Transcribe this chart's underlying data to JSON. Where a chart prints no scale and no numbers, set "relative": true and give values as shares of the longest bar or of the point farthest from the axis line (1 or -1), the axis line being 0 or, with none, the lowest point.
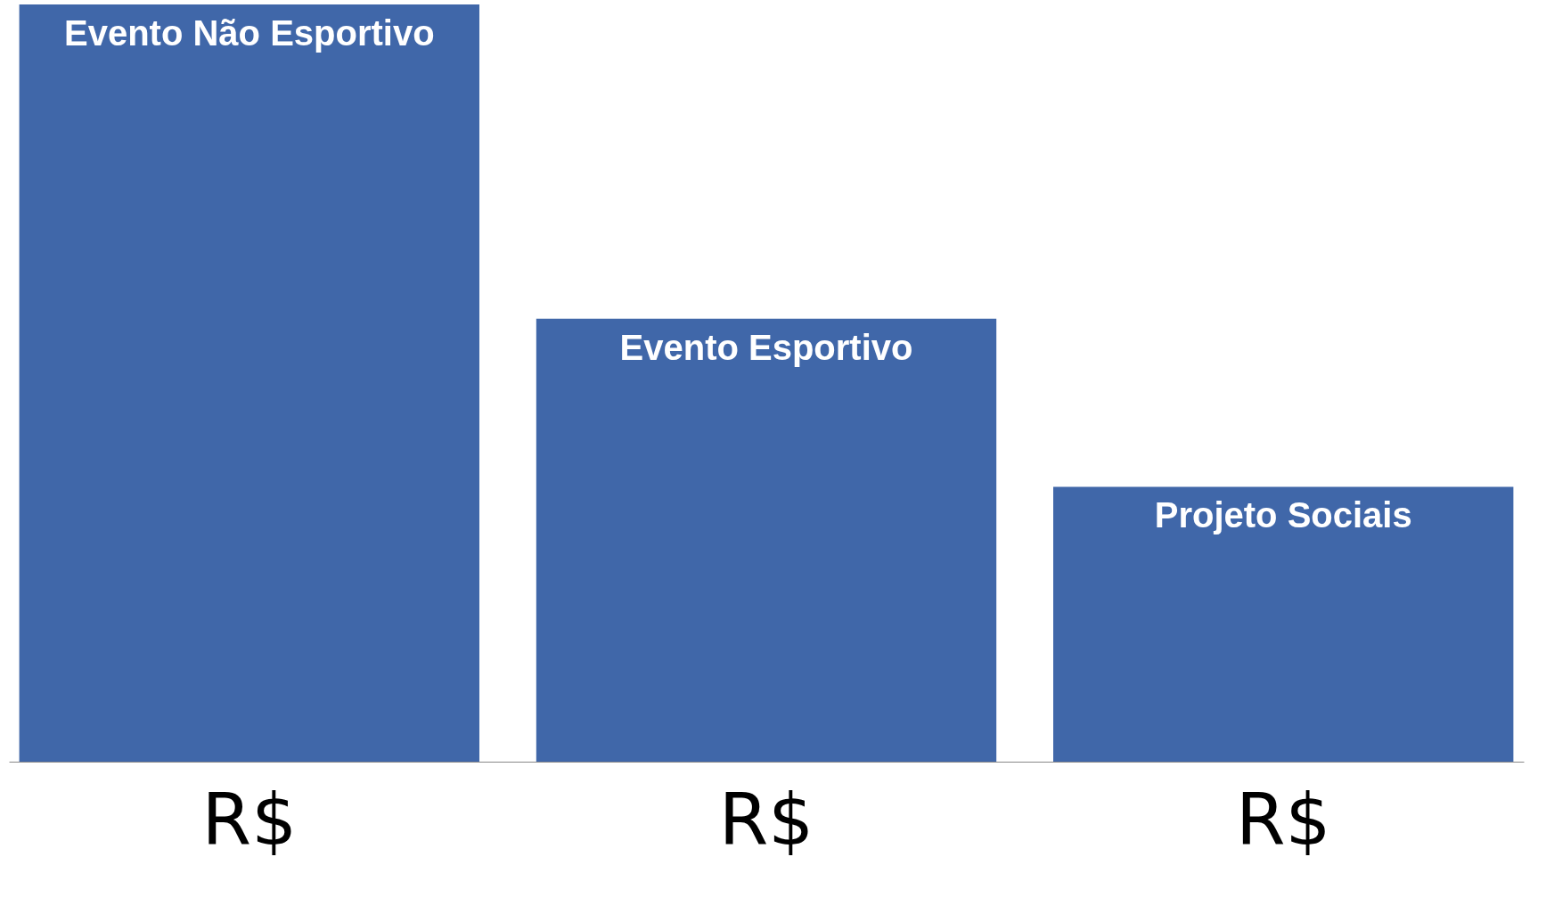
{
  "chart_data": {
    "type": "bar",
    "relative": true,
    "categories": [
      "Evento Não Esportivo",
      "Evento Esportivo",
      "Projeto Sociais"
    ],
    "values": [
      1,
      0.585,
      0.363
    ],
    "color": "#4067a9",
    "annotations": [
      "R$",
      "R$",
      "R$"
    ]
  }
}
